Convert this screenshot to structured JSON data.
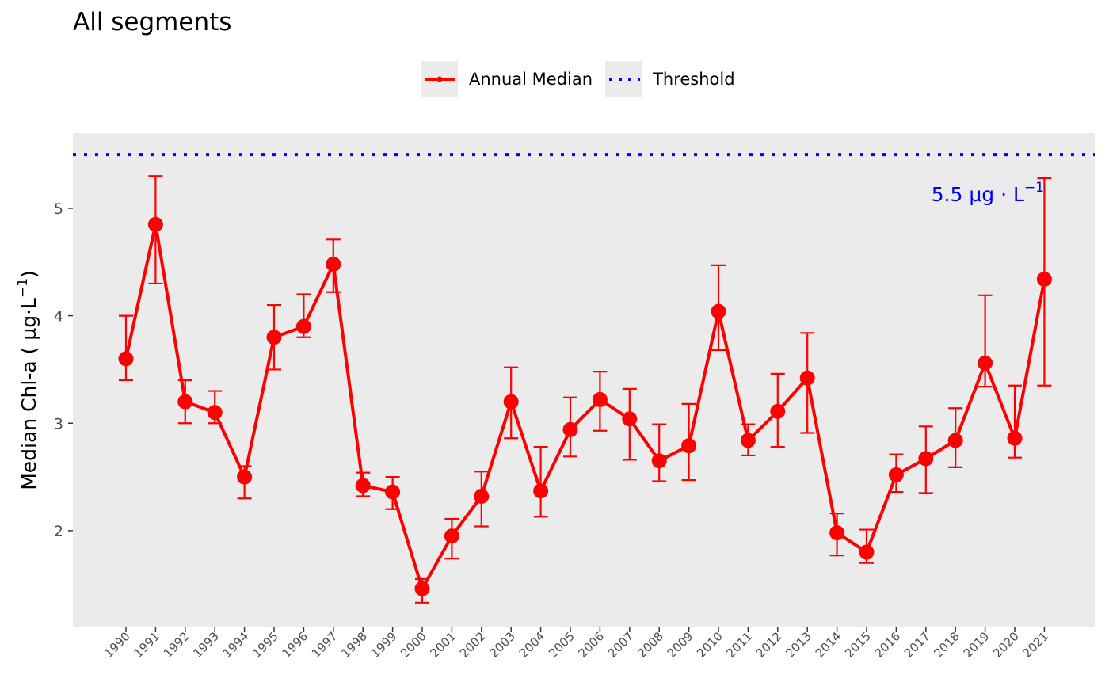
{
  "chart_data": {
    "type": "line",
    "title": "All segments",
    "xlabel": "",
    "ylabel": "Median Chl-a ( µg·L",
    "ylabel_exponent": "−1",
    "ylabel_close": ")",
    "ylim": [
      1.1,
      5.7
    ],
    "yticks": [
      2,
      3,
      4,
      5
    ],
    "legend_position": "top",
    "grid": false,
    "series": [
      {
        "name": "Annual Median",
        "color": "#ff0000",
        "x": [
          "1990",
          "1991",
          "1992",
          "1993",
          "1994",
          "1995",
          "1996",
          "1997",
          "1998",
          "1999",
          "2000",
          "2001",
          "2002",
          "2003",
          "2004",
          "2005",
          "2006",
          "2007",
          "2008",
          "2009",
          "2010",
          "2011",
          "2012",
          "2013",
          "2014",
          "2015",
          "2016",
          "2017",
          "2018",
          "2019",
          "2020",
          "2021"
        ],
        "values": [
          3.6,
          4.85,
          3.2,
          3.1,
          2.5,
          3.8,
          3.9,
          4.48,
          2.42,
          2.36,
          1.46,
          1.95,
          2.32,
          3.2,
          2.37,
          2.94,
          3.22,
          3.04,
          2.65,
          2.79,
          4.04,
          2.84,
          3.11,
          3.42,
          1.98,
          1.8,
          2.52,
          2.67,
          2.84,
          3.56,
          2.86,
          4.34
        ],
        "error_low": [
          3.4,
          4.3,
          3.0,
          3.0,
          2.3,
          3.5,
          3.8,
          4.22,
          2.32,
          2.2,
          1.33,
          1.74,
          2.04,
          2.86,
          2.13,
          2.69,
          2.93,
          2.66,
          2.46,
          2.47,
          3.68,
          2.7,
          2.78,
          2.91,
          1.77,
          1.7,
          2.36,
          2.35,
          2.59,
          3.34,
          2.68,
          3.35
        ],
        "error_high": [
          4.0,
          5.3,
          3.4,
          3.3,
          2.6,
          4.1,
          4.2,
          4.71,
          2.54,
          2.5,
          1.55,
          2.11,
          2.55,
          3.52,
          2.78,
          3.24,
          3.48,
          3.32,
          2.99,
          3.18,
          4.47,
          2.99,
          3.46,
          3.84,
          2.16,
          2.01,
          2.71,
          2.97,
          3.14,
          4.19,
          3.35,
          5.28
        ]
      },
      {
        "name": "Threshold",
        "color": "#0000ff",
        "value": 5.5
      }
    ],
    "annotation": {
      "text": "5.5 µg · L",
      "superscript": "−1"
    }
  }
}
